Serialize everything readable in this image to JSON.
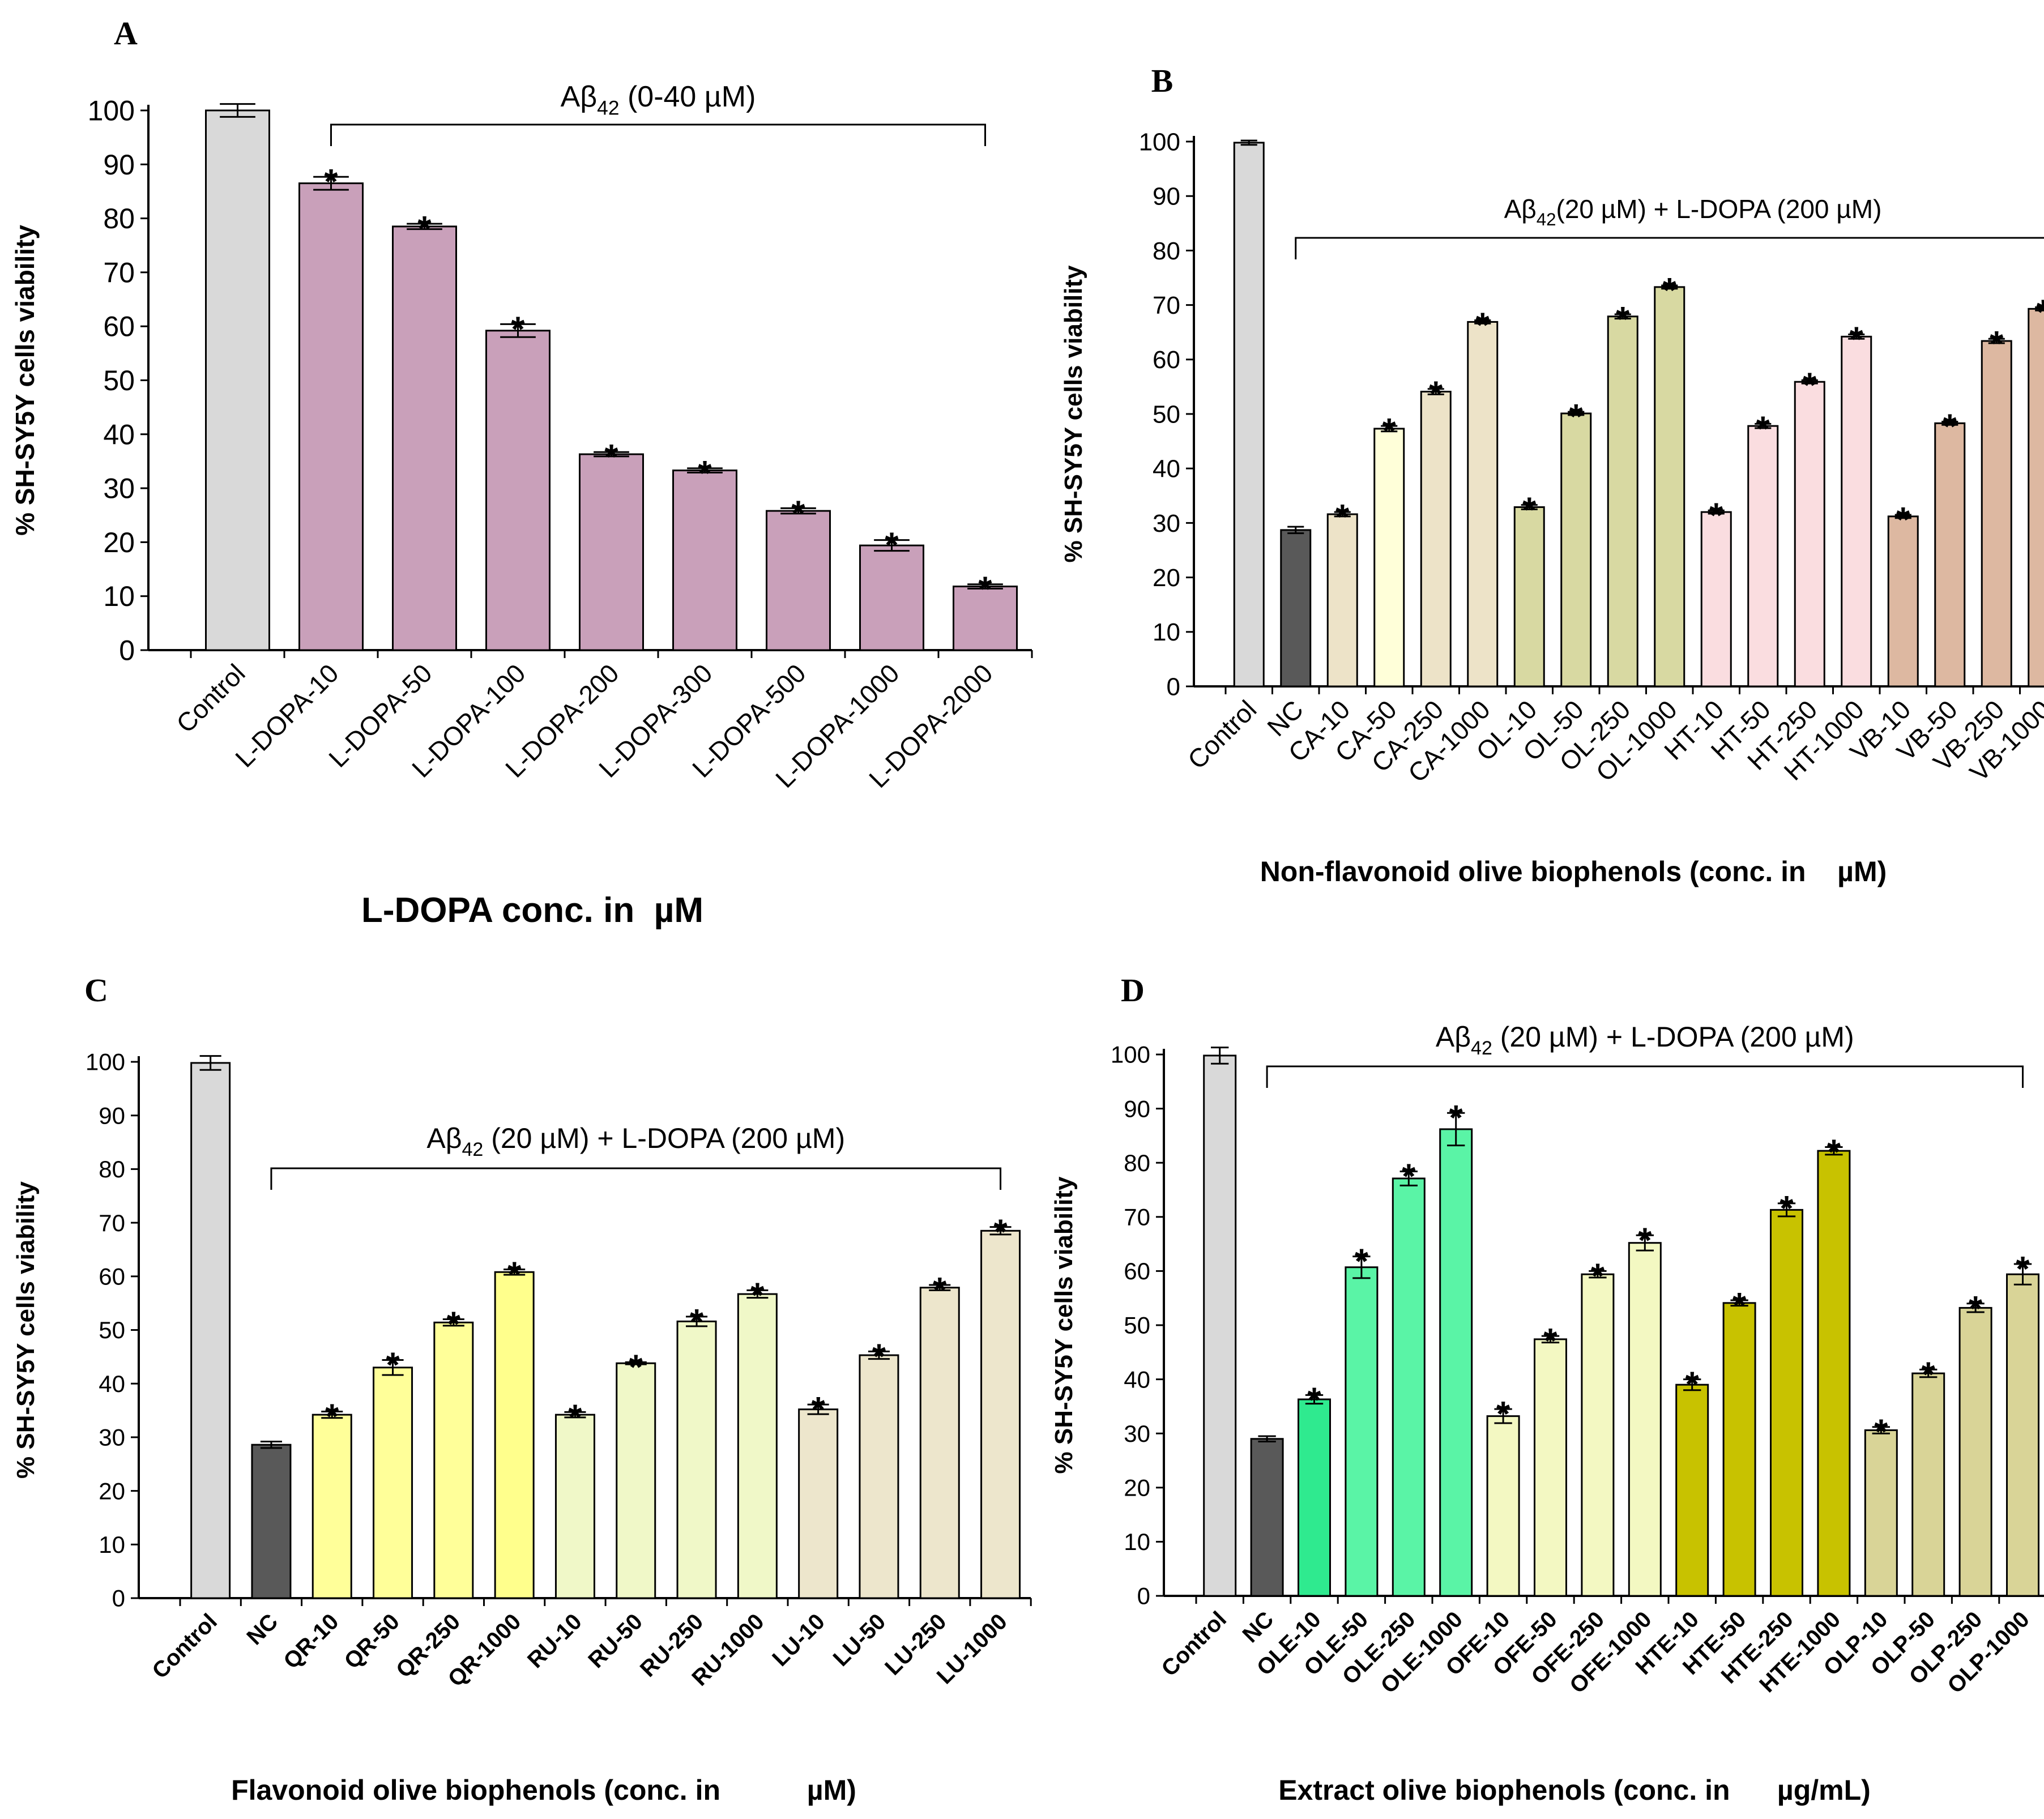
{
  "colors": {
    "control": "#D9D9D9",
    "nc": "#595959",
    "ldopa": "#C9A0BA",
    "ca": "#EDE3C8",
    "cyp": "#FFFFD9",
    "olGreen": "#D8D9A2",
    "ht": "#FADDE0",
    "vb": "#DDB8A1",
    "qr": "#FFFF99",
    "qrBright": "#FFFF8C",
    "ru": "#F0F8C8",
    "lu": "#EDE6CC",
    "oleA": "#2FEA8F",
    "oleB": "#5AF4A6",
    "ofe": "#F3F8C2",
    "hte": "#C8C200",
    "olp": "#D9D497"
  },
  "chart_data": [
    {
      "panel": "A",
      "type": "bar",
      "ylabel": "% SH-SY5Y cells viability",
      "xlabel": "L-DOPA conc. in  µM",
      "ylim": [
        0,
        100
      ],
      "yticks": [
        0,
        10,
        20,
        30,
        40,
        50,
        60,
        70,
        80,
        90,
        100
      ],
      "bracket": {
        "text": "Aβ",
        "sub": "42",
        "tail": " (0-40 µM)",
        "from": 1,
        "to": 8
      },
      "categories": [
        "Control",
        "L-DOPA-10",
        "L-DOPA-50",
        "L-DOPA-100",
        "L-DOPA-200",
        "L-DOPA-300",
        "L-DOPA-500",
        "L-DOPA-1000",
        "L-DOPA-2000"
      ],
      "values": [
        100,
        86.5,
        78.5,
        59.2,
        36.3,
        33.3,
        25.8,
        19.4,
        11.8
      ],
      "errors": [
        1.2,
        1.2,
        0.5,
        1.2,
        0.4,
        0.4,
        0.5,
        1.0,
        0.4
      ],
      "star": [
        false,
        true,
        true,
        true,
        true,
        true,
        true,
        true,
        true
      ],
      "colorKeys": [
        "control",
        "ldopa",
        "ldopa",
        "ldopa",
        "ldopa",
        "ldopa",
        "ldopa",
        "ldopa",
        "ldopa"
      ]
    },
    {
      "panel": "B",
      "type": "bar",
      "ylabel": "% SH-SY5Y cells viability",
      "xlabel": "Non-flavonoid olive biophenols (conc. in    µM)",
      "ylim": [
        0,
        100
      ],
      "yticks": [
        0,
        10,
        20,
        30,
        40,
        50,
        60,
        70,
        80,
        90,
        100
      ],
      "bracket": {
        "text": "Aβ",
        "sub": "42",
        "tail": "(20 µM) + L-DOPA (200  µM)",
        "from": 1,
        "to": 18
      },
      "categories": [
        "Control",
        "NC",
        "CA-10",
        "CA-50",
        "CA-250",
        "CA-1000",
        "OL-10",
        "OL-50",
        "OL-250",
        "OL-1000",
        "HT-10",
        "HT-50",
        "HT-250",
        "HT-1000",
        "VB-10",
        "VB-50",
        "VB-250",
        "VB-1000"
      ],
      "values": [
        99.8,
        28.7,
        31.6,
        47.3,
        54.1,
        66.9,
        32.9,
        50.1,
        67.9,
        73.3,
        32.0,
        47.8,
        55.9,
        64.2,
        31.2,
        48.3,
        63.4,
        69.3
      ],
      "errors": [
        0.4,
        0.6,
        0.4,
        0.5,
        0.5,
        0.3,
        0.4,
        0.3,
        0.4,
        0.3,
        0.3,
        0.4,
        0.3,
        0.4,
        0.3,
        0.3,
        0.4,
        0.3
      ],
      "star": [
        false,
        false,
        true,
        true,
        true,
        true,
        true,
        true,
        true,
        true,
        true,
        true,
        true,
        true,
        true,
        true,
        true,
        true
      ],
      "colorKeys": [
        "control",
        "nc",
        "ca",
        "cyp",
        "ca",
        "ca",
        "olGreen",
        "olGreen",
        "olGreen",
        "olGreen",
        "ht",
        "ht",
        "ht",
        "ht",
        "vb",
        "vb",
        "vb",
        "vb"
      ]
    },
    {
      "panel": "C",
      "type": "bar",
      "ylabel": "% SH-SY5Y cells viability",
      "xlabel": "Flavonoid olive biophenols (conc. in           µM)",
      "ylim": [
        0,
        100
      ],
      "yticks": [
        0,
        10,
        20,
        30,
        40,
        50,
        60,
        70,
        80,
        90,
        100
      ],
      "bracket": {
        "text": "Aβ",
        "sub": "42",
        "tail": " (20 µM) + L-DOPA (200  µM)",
        "from": 1,
        "to": 13
      },
      "categories": [
        "Control",
        "NC",
        "QR-10",
        "QR-50",
        "QR-250",
        "QR-1000",
        "RU-10",
        "RU-50",
        "RU-250",
        "RU-1000",
        "LU-10",
        "LU-50",
        "LU-250",
        "LU-1000"
      ],
      "values": [
        99.8,
        28.6,
        34.2,
        43.0,
        51.4,
        60.8,
        34.2,
        43.8,
        51.6,
        56.7,
        35.2,
        45.3,
        57.9,
        68.5
      ],
      "errors": [
        1.3,
        0.6,
        0.6,
        1.4,
        0.6,
        0.5,
        0.5,
        0.2,
        0.9,
        0.7,
        0.9,
        0.7,
        0.5,
        0.7
      ],
      "star": [
        false,
        false,
        true,
        true,
        true,
        true,
        true,
        true,
        true,
        true,
        true,
        true,
        true,
        true
      ],
      "colorKeys": [
        "control",
        "nc",
        "qr",
        "qr",
        "qr",
        "qrBright",
        "ru",
        "ru",
        "ru",
        "ru",
        "lu",
        "lu",
        "lu",
        "lu"
      ]
    },
    {
      "panel": "D",
      "type": "bar",
      "ylabel": "% SH-SY5Y cells viability",
      "xlabel": "Extract olive biophenols (conc. in      µg/mL)",
      "ylim": [
        0,
        100
      ],
      "yticks": [
        0,
        10,
        20,
        30,
        40,
        50,
        60,
        70,
        80,
        90,
        100
      ],
      "bracket": {
        "text": "Aβ",
        "sub": "42",
        "tail": " (20 µM) + L-DOPA (200 µM)",
        "from": 1,
        "to": 17
      },
      "categories": [
        "Control",
        "NC",
        "OLE-10",
        "OLE-50",
        "OLE-250",
        "OLE-1000",
        "OFE-10",
        "OFE-50",
        "OFE-250",
        "OFE-1000",
        "HTE-10",
        "HTE-50",
        "HTE-250",
        "HTE-1000",
        "OLP-10",
        "OLP-50",
        "OLP-250",
        "OLP-1000"
      ],
      "values": [
        99.8,
        29.0,
        36.3,
        60.7,
        77.1,
        86.2,
        33.2,
        47.4,
        59.4,
        65.2,
        39.0,
        54.1,
        71.3,
        82.2,
        30.6,
        41.1,
        53.2,
        59.4
      ],
      "errors": [
        1.5,
        0.5,
        0.8,
        2.0,
        1.3,
        3.0,
        1.3,
        0.6,
        0.6,
        1.4,
        1.0,
        0.5,
        1.2,
        0.7,
        0.6,
        0.7,
        0.8,
        1.9
      ],
      "star": [
        false,
        false,
        true,
        true,
        true,
        true,
        true,
        true,
        true,
        true,
        true,
        true,
        true,
        true,
        true,
        true,
        true,
        true
      ],
      "colorKeys": [
        "control",
        "nc",
        "oleA",
        "oleB",
        "oleB",
        "oleB",
        "ofe",
        "ofe",
        "ofe",
        "ofe",
        "hte",
        "hte",
        "hte",
        "hte",
        "olp",
        "olp",
        "olp",
        "olp"
      ]
    }
  ]
}
